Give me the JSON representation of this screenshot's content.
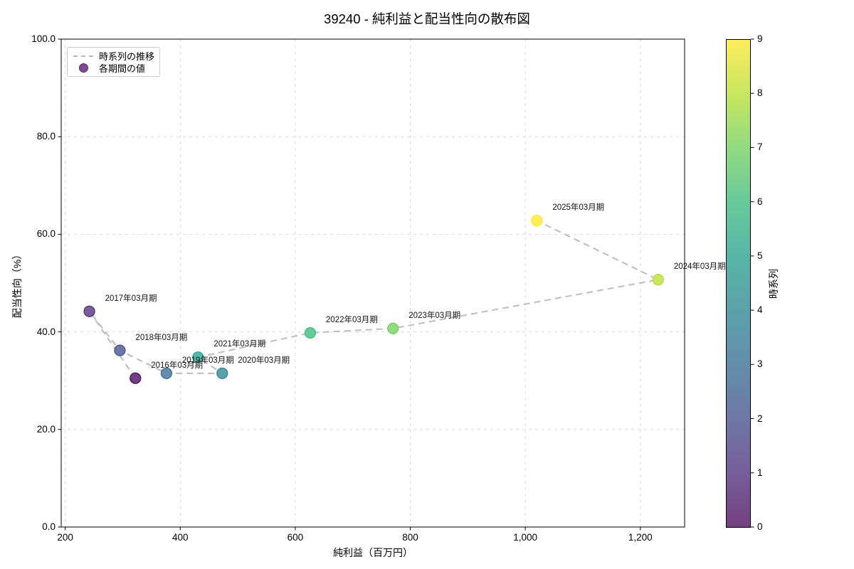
{
  "chart_data": {
    "type": "scatter",
    "title": "39240 - 純利益と配当性向の散布図",
    "xlabel": "純利益（百万円）",
    "ylabel": "配当性向（%）",
    "xlim": [
      193,
      1277
    ],
    "ylim": [
      0,
      100
    ],
    "grid": true,
    "x_ticks": {
      "values": [
        200,
        400,
        600,
        800,
        1000,
        1200
      ],
      "labels": [
        "200",
        "400",
        "600",
        "800",
        "1,000",
        "1,200"
      ]
    },
    "y_ticks": {
      "values": [
        0,
        20,
        40,
        60,
        80,
        100
      ],
      "labels": [
        "0.0",
        "20.0",
        "40.0",
        "60.0",
        "80.0",
        "100.0"
      ]
    },
    "legend": {
      "position": "upper left",
      "line_label": "時系列の推移",
      "marker_label": "各期間の値"
    },
    "colorbar": {
      "label": "時系列",
      "min": 0,
      "max": 9,
      "ticks": [
        0,
        1,
        2,
        3,
        4,
        5,
        6,
        7,
        8,
        9
      ]
    },
    "points": [
      {
        "period": "2016年03月期",
        "x": 322,
        "y": 30.5,
        "t": 0
      },
      {
        "period": "2017年03月期",
        "x": 242,
        "y": 44.2,
        "t": 1
      },
      {
        "period": "2018年03月期",
        "x": 295,
        "y": 36.2,
        "t": 2
      },
      {
        "period": "2019年03月期",
        "x": 376,
        "y": 31.5,
        "t": 3
      },
      {
        "period": "2020年03月期",
        "x": 473,
        "y": 31.5,
        "t": 4
      },
      {
        "period": "2021年03月期",
        "x": 431,
        "y": 34.8,
        "t": 5
      },
      {
        "period": "2022年03月期",
        "x": 626,
        "y": 39.8,
        "t": 6
      },
      {
        "period": "2023年03月期",
        "x": 770,
        "y": 40.7,
        "t": 7
      },
      {
        "period": "2024年03月期",
        "x": 1231,
        "y": 50.7,
        "t": 8
      },
      {
        "period": "2025年03月期",
        "x": 1020,
        "y": 62.8,
        "t": 9
      }
    ],
    "colors": {
      "point_fill": [
        "#73407F",
        "#765E9A",
        "#6E77A6",
        "#648EAA",
        "#5CA1AA",
        "#57B6A7",
        "#68C99B",
        "#92DA82",
        "#C8E660",
        "#FEED5C"
      ],
      "point_edge": [
        "#440154",
        "#482878",
        "#3e4a89",
        "#31688e",
        "#26828e",
        "#1f9e89",
        "#35b779",
        "#6ece58",
        "#b5de2b",
        "#fde725"
      ],
      "colorbar_gradient": [
        "#73407F",
        "#765E9A",
        "#6E77A6",
        "#648EAA",
        "#5CA1AA",
        "#57B6A7",
        "#68C99B",
        "#92DA82",
        "#C8E660",
        "#FEED5C"
      ],
      "trend_line": "#bdbdbd",
      "grid": "#d9d9d9",
      "spine": "#000000",
      "legend_marker_fill": "#7A4D8F",
      "legend_marker_edge": "#59266b"
    }
  }
}
